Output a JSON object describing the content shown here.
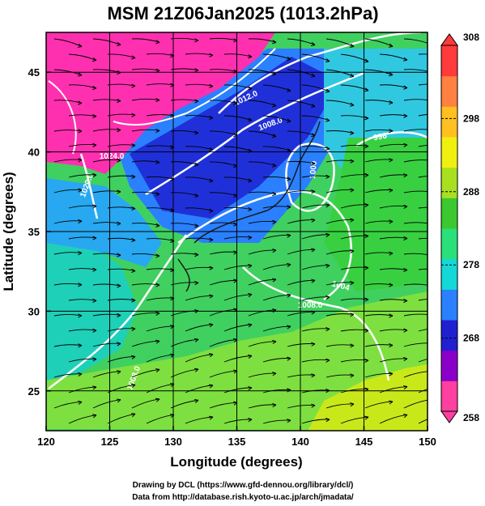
{
  "chart_data": {
    "type": "heatmap",
    "title": "MSM 21Z06Jan2025 (1013.2hPa)",
    "xlabel": "Longitude (degrees)",
    "ylabel": "Latitude  (degrees)",
    "xlim": [
      120,
      150
    ],
    "ylim": [
      22.5,
      47.5
    ],
    "xticks": [
      "120",
      "125",
      "130",
      "135",
      "140",
      "145",
      "150"
    ],
    "yticks": [
      "25",
      "30",
      "35",
      "40",
      "45"
    ],
    "grid": true,
    "colorbar": {
      "placement": "right",
      "min": 258,
      "max": 308,
      "ticks": [
        "308",
        "298",
        "288",
        "278",
        "268",
        "258"
      ],
      "colors": [
        "#ff40a0",
        "#8b00c8",
        "#2020d0",
        "#2a80ff",
        "#14d8d8",
        "#2ae07a",
        "#3cc830",
        "#a8e020",
        "#f0f010",
        "#ffc020",
        "#ff8040",
        "#ff3a3a"
      ]
    },
    "contours": [
      {
        "label": "1012.0",
        "value": 1012.0
      },
      {
        "label": "1008.0",
        "value": 1008.0
      },
      {
        "label": "1020.0",
        "value": 1020.0
      },
      {
        "label": "1000",
        "value": 1000
      },
      {
        "label": "996",
        "value": 996
      },
      {
        "label": "1004",
        "value": 1004
      },
      {
        "label": "1024.0",
        "value": 1024.0
      }
    ],
    "overlay": "wind streamlines"
  },
  "credits": {
    "line1": "Drawing by DCL (https://www.gfd-dennou.org/library/dcl/)",
    "line2": "Data from http://database.rish.kyoto-u.ac.jp/arch/jmadata/"
  }
}
